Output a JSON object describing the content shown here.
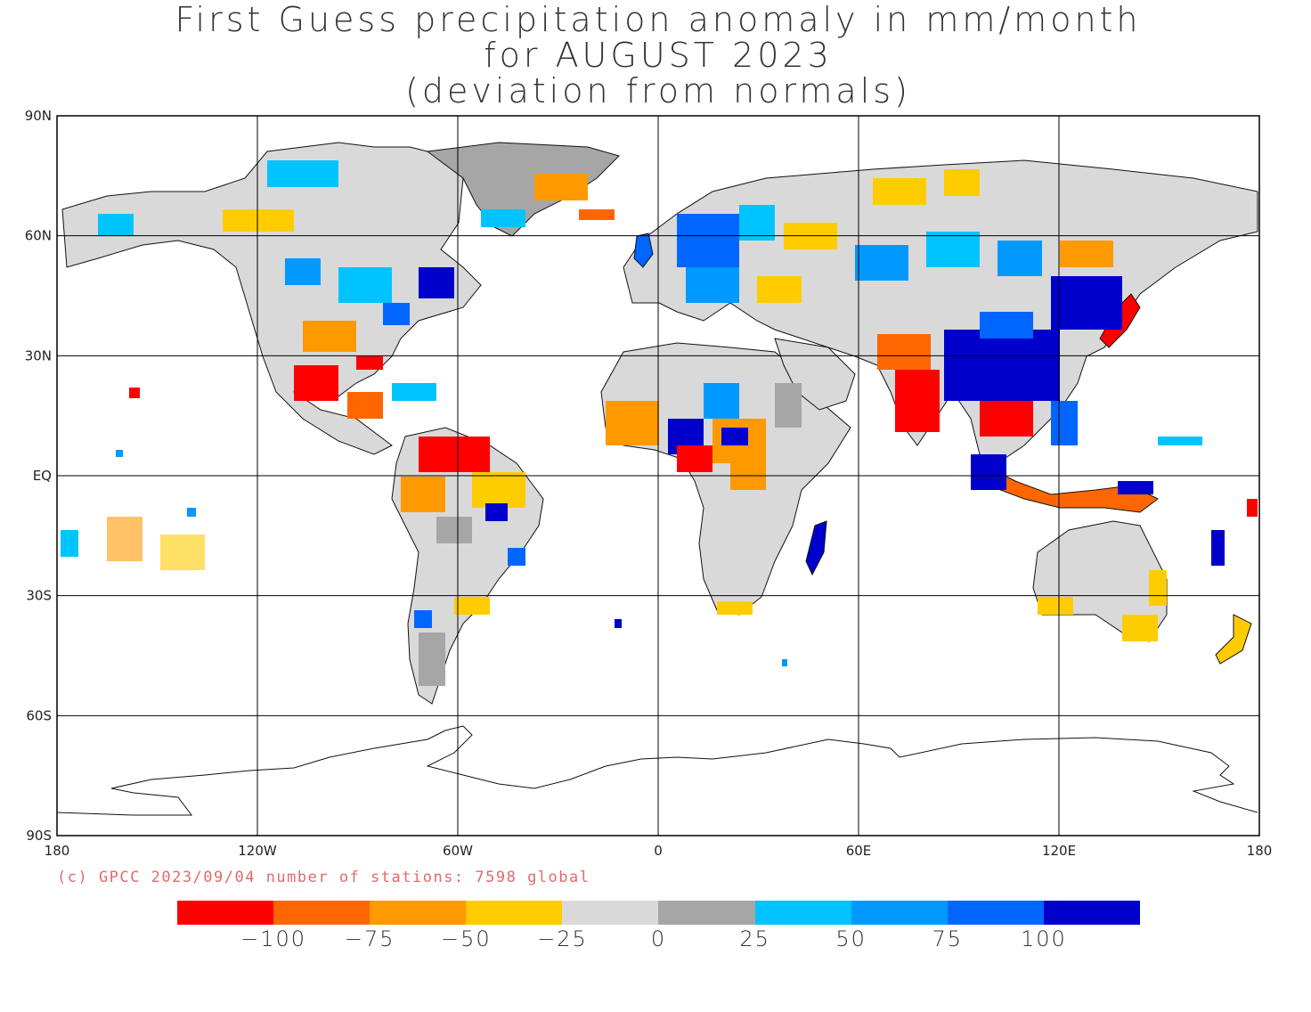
{
  "title": {
    "line1": "First Guess precipitation anomaly in mm/month",
    "line2": "for AUGUST 2023",
    "line3": "(deviation from normals)"
  },
  "axes": {
    "lat_labels": [
      "90N",
      "60N",
      "30N",
      "EQ",
      "30S",
      "60S",
      "90S"
    ],
    "lon_labels": [
      "180",
      "120W",
      "60W",
      "0",
      "60E",
      "120E",
      "180"
    ]
  },
  "credit": "(c) GPCC 2023/09/04 number of stations: 7598 global",
  "legend": {
    "colors": [
      "#ff0000",
      "#ff6600",
      "#ff9900",
      "#ffcc00",
      "#d9d9d9",
      "#a6a6a6",
      "#00c4ff",
      "#0099ff",
      "#0066ff",
      "#0000cc"
    ],
    "labels": [
      "-100",
      "-75",
      "-50",
      "-25",
      "0",
      "25",
      "50",
      "75",
      "100"
    ]
  },
  "colors": {
    "land_neutral": "#d9d9d9",
    "land_slight_wet": "#a6a6a6",
    "dry_strong": "#ff0000",
    "dry_mod": "#ff6600",
    "dry_mild": "#ff9900",
    "dry_slight": "#ffcc00",
    "wet_slight": "#00c4ff",
    "wet_mild": "#0099ff",
    "wet_mod": "#0066ff",
    "wet_strong": "#0000cc"
  }
}
